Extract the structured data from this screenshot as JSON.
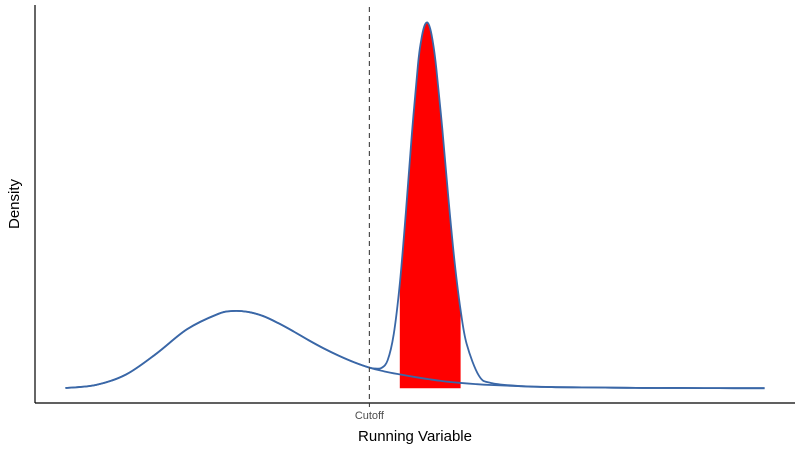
{
  "chart_data": {
    "type": "line",
    "title": "",
    "xlabel": "Running Variable",
    "ylabel": "Density",
    "xlim": [
      -1.1,
      1.4
    ],
    "ylim": [
      -0.05,
      1.3
    ],
    "x_ticks": [
      {
        "value": 0,
        "label": "Cutoff"
      }
    ],
    "y_ticks": [],
    "grid": false,
    "legend": "none",
    "cutoff": {
      "x": 0,
      "line_style": "dashed",
      "color": "#4d4d4d"
    },
    "series": [
      {
        "color": "#3a67a7",
        "x": [
          -1.0,
          -0.9,
          -0.8,
          -0.7,
          -0.6,
          -0.5,
          -0.45,
          -0.4,
          -0.35,
          -0.3,
          -0.25,
          -0.2,
          -0.15,
          -0.1,
          -0.05,
          0.0,
          0.02,
          0.04,
          0.06,
          0.08,
          0.1,
          0.12,
          0.14,
          0.16,
          0.17,
          0.18,
          0.19,
          0.2,
          0.21,
          0.22,
          0.24,
          0.26,
          0.28,
          0.3,
          0.32,
          0.36,
          0.4,
          0.5,
          0.6,
          0.7,
          0.8,
          0.9,
          1.0,
          1.1,
          1.2,
          1.3
        ],
        "y": [
          0.001,
          0.011,
          0.047,
          0.118,
          0.2,
          0.251,
          0.262,
          0.259,
          0.245,
          0.221,
          0.193,
          0.163,
          0.135,
          0.11,
          0.088,
          0.07,
          0.067,
          0.069,
          0.095,
          0.183,
          0.354,
          0.597,
          0.866,
          1.1,
          1.178,
          1.226,
          1.241,
          1.22,
          1.166,
          1.086,
          0.878,
          0.643,
          0.431,
          0.265,
          0.15,
          0.043,
          0.018,
          0.007,
          0.004,
          0.003,
          0.002,
          0.001,
          0.001,
          0.0005,
          0.0003,
          0.0002
        ]
      }
    ],
    "shaded_region": {
      "color": "#ff0000",
      "x_start": 0.1,
      "x_end": 0.3
    },
    "reference_density": {
      "color": "#3a67a7",
      "x": [
        -1.0,
        -0.9,
        -0.8,
        -0.7,
        -0.6,
        -0.5,
        -0.45,
        -0.4,
        -0.35,
        -0.3,
        -0.25,
        -0.2,
        -0.15,
        -0.1,
        -0.05,
        0.0,
        0.05,
        0.1,
        0.15,
        0.2,
        0.25,
        0.3,
        0.35,
        0.4,
        0.5,
        0.6,
        0.7,
        0.8,
        0.9,
        1.0,
        1.1,
        1.2,
        1.3
      ],
      "y": [
        0.001,
        0.011,
        0.047,
        0.118,
        0.2,
        0.251,
        0.262,
        0.259,
        0.245,
        0.221,
        0.193,
        0.163,
        0.135,
        0.11,
        0.088,
        0.07,
        0.057,
        0.047,
        0.038,
        0.03,
        0.023,
        0.018,
        0.014,
        0.011,
        0.007,
        0.004,
        0.003,
        0.002,
        0.001,
        0.001,
        0.0005,
        0.0003,
        0.0002
      ]
    }
  }
}
